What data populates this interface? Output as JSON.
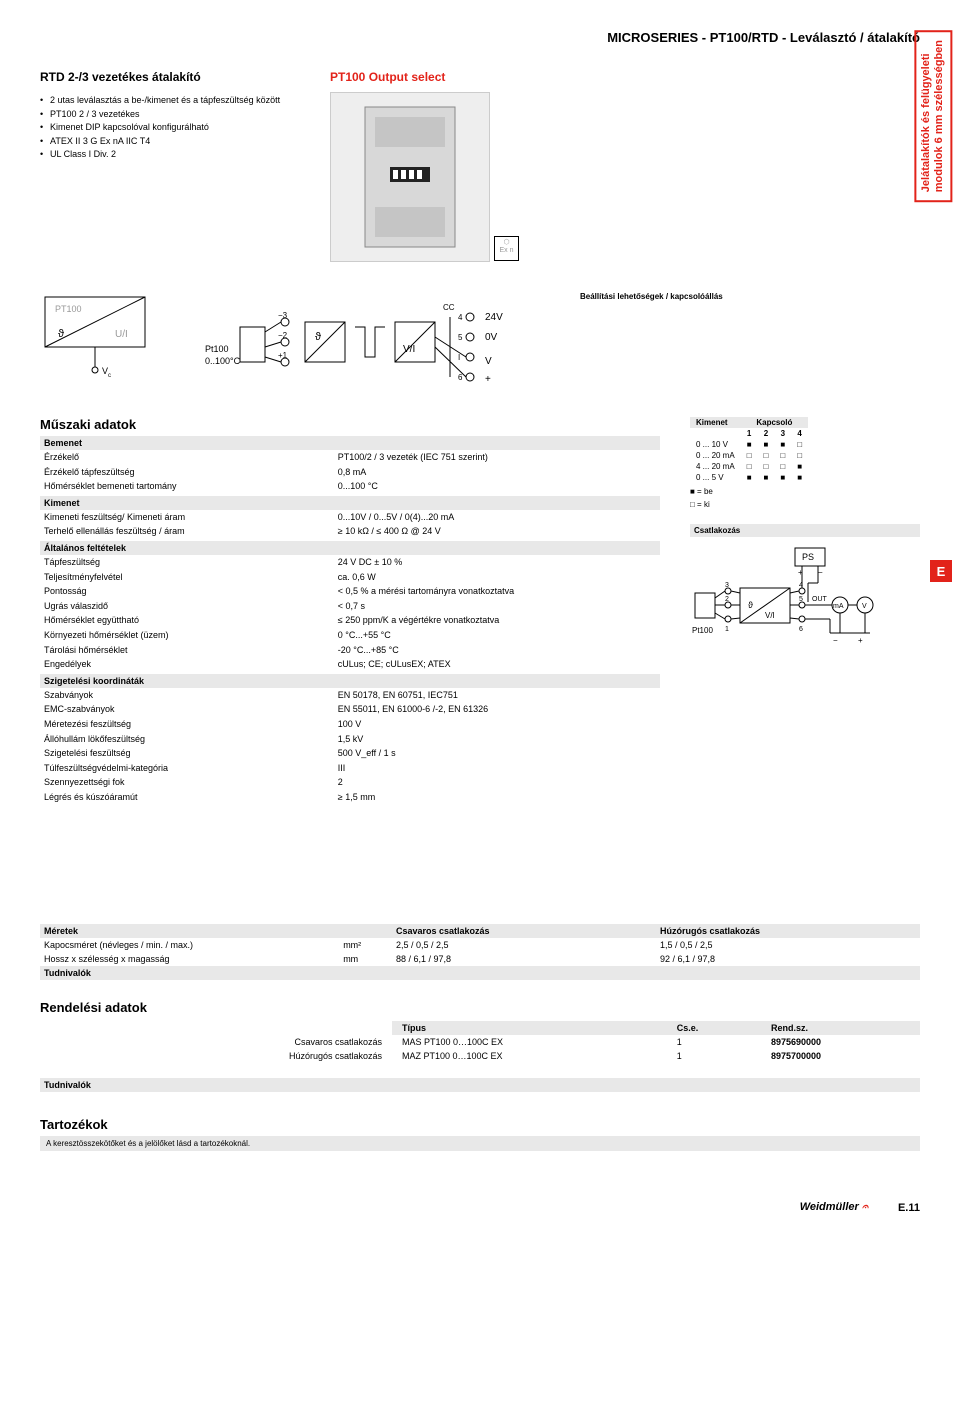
{
  "header": {
    "title": "MICROSERIES - PT100/RTD - Leválasztó / átalakító"
  },
  "side_tab": {
    "line1": "Jelátalakítók és felügyeleti",
    "line2": "modulok 6 mm szélességben"
  },
  "intro": {
    "title": "RTD 2-/3 vezetékes átalakító",
    "bullets": [
      "2 utas leválasztás a be-/kimenet és a tápfeszültség között",
      "PT100 2 / 3 vezetékes",
      "Kimenet DIP kapcsolóval konfigurálható",
      "ATEX II 3 G Ex nA IIC T4",
      "UL Class I Div. 2"
    ]
  },
  "output_select": {
    "label": "PT100 Output select"
  },
  "block_diagram": {
    "left_top": "PT100",
    "left_theta": "ϑ",
    "left_ui": "U/I",
    "vc": "V_c"
  },
  "circuit_labels": {
    "pt100": "Pt100",
    "range": "0..100°C",
    "vi": "V/I",
    "v24": "24V",
    "v0": "0V",
    "vplus": "V",
    "plus": "+"
  },
  "settings": {
    "label": "Beállítási lehetőségek / kapcsolóállás",
    "table_header": {
      "col0": "Kimenet",
      "colK": "Kapcsoló",
      "cols": [
        "1",
        "2",
        "3",
        "4"
      ]
    },
    "rows": [
      {
        "label": "0 ... 10 V",
        "states": [
          "■",
          "■",
          "■",
          "□"
        ]
      },
      {
        "label": "0 ... 20 mA",
        "states": [
          "□",
          "□",
          "□",
          "□"
        ]
      },
      {
        "label": "4 ... 20 mA",
        "states": [
          "□",
          "□",
          "□",
          "■"
        ]
      },
      {
        "label": "0 ... 5 V",
        "states": [
          "■",
          "■",
          "■",
          "■"
        ]
      }
    ],
    "legend_on": "■ = be",
    "legend_off": "□ = ki"
  },
  "connection_label": "Csatlakozás",
  "conn_diagram": {
    "ps": "PS",
    "pt100": "Pt100",
    "vi": "V/I",
    "out": "OUT",
    "ma": "mA",
    "v": "V"
  },
  "specs": {
    "title": "Műszaki adatok",
    "groups": [
      {
        "header": "Bemenet",
        "rows": [
          {
            "k": "Érzékelő",
            "v": "PT100/2 / 3 vezeték (IEC 751 szerint)"
          },
          {
            "k": "Érzékelő tápfeszültség",
            "v": "0,8 mA"
          },
          {
            "k": "Hőmérséklet bemeneti tartomány",
            "v": "0...100 °C"
          }
        ]
      },
      {
        "header": "Kimenet",
        "rows": [
          {
            "k": "Kimeneti feszültség/ Kimeneti áram",
            "v": "0...10V / 0...5V / 0(4)...20 mA"
          },
          {
            "k": "Terhelő ellenállás feszültség / áram",
            "v": "≥ 10 kΩ / ≤ 400 Ω @ 24 V"
          }
        ]
      },
      {
        "header": "Általános feltételek",
        "rows": [
          {
            "k": "Tápfeszültség",
            "v": "24 V DC ± 10 %"
          },
          {
            "k": "Teljesítményfelvétel",
            "v": "ca. 0,6 W"
          },
          {
            "k": "Pontosság",
            "v": "< 0,5 % a mérési tartományra vonatkoztatva"
          },
          {
            "k": "Ugrás válaszidő",
            "v": "< 0,7 s"
          },
          {
            "k": "Hőmérséklet együttható",
            "v": "≤ 250 ppm/K a végértékre vonatkoztatva"
          },
          {
            "k": "Környezeti hőmérséklet (üzem)",
            "v": "0 °C...+55 °C"
          },
          {
            "k": "Tárolási hőmérséklet",
            "v": "-20 °C...+85 °C"
          },
          {
            "k": "Engedélyek",
            "v": "cULus; CE; cULusEX; ATEX"
          }
        ]
      },
      {
        "header": "Szigetelési koordináták",
        "rows": [
          {
            "k": "Szabványok",
            "v": "EN 50178, EN 60751, IEC751"
          },
          {
            "k": "EMC-szabványok",
            "v": "EN 55011, EN 61000-6 /-2, EN 61326"
          },
          {
            "k": "Méretezési feszültség",
            "v": "100 V"
          },
          {
            "k": "Állóhullám lökőfeszültség",
            "v": "1,5 kV"
          },
          {
            "k": "Szigetelési feszültség",
            "v": "500 V_eff / 1 s"
          },
          {
            "k": "Túlfeszültségvédelmi-kategória",
            "v": "III"
          },
          {
            "k": "Szennyezettségi fok",
            "v": "2"
          },
          {
            "k": "Légrés és kúszóáramút",
            "v": "≥ 1,5 mm"
          }
        ]
      }
    ]
  },
  "e_badge": "E",
  "dimensions": {
    "headers": [
      "Méretek",
      "",
      "Csavaros csatlakozás",
      "Húzórugós csatlakozás"
    ],
    "rows": [
      {
        "k": "Kapocsméret (névleges / min. / max.)",
        "u": "mm²",
        "a": "2,5 / 0,5 / 2,5",
        "b": "1,5 / 0,5 / 2,5"
      },
      {
        "k": "Hossz x szélesség x magasság",
        "u": "mm",
        "a": "88 / 6,1 / 97,8",
        "b": "92 / 6,1 / 97,8"
      }
    ],
    "tudni": "Tudnivalók"
  },
  "order": {
    "title": "Rendelési adatok",
    "headers": [
      "Típus",
      "Cs.e.",
      "Rend.sz."
    ],
    "rows": [
      {
        "label": "Csavaros csatlakozás",
        "type": "MAS PT100 0…100C EX",
        "cse": "1",
        "rend": "8975690000"
      },
      {
        "label": "Húzórugós csatlakozás",
        "type": "MAZ PT100 0…100C EX",
        "cse": "1",
        "rend": "8975700000"
      }
    ]
  },
  "tudni2": "Tudnivalók",
  "accessories": {
    "title": "Tartozékok",
    "note": "A keresztösszekötőket és a jelölőket lásd a tartozékoknál."
  },
  "footer": {
    "brand": "Weidmüller",
    "page": "E.11"
  }
}
